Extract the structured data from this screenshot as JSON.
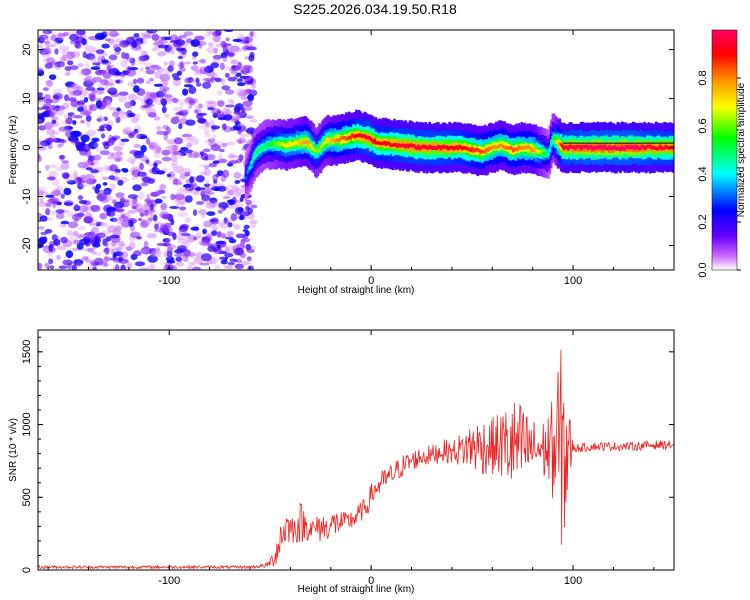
{
  "title": "S225.2026.034.19.50.R18",
  "colorbar": {
    "label": "Normalized spectral amplitude",
    "ticks": [
      "0.0",
      "0.2",
      "0.4",
      "0.6",
      "0.8"
    ],
    "tick_values": [
      0.0,
      0.2,
      0.4,
      0.6,
      0.8
    ],
    "range": [
      0,
      1
    ],
    "colormap": [
      "#ffffff",
      "#cc66ff",
      "#6600ff",
      "#0000ff",
      "#00ffff",
      "#00ff00",
      "#ffff00",
      "#ff8800",
      "#ff0000",
      "#ff0066"
    ]
  },
  "chart_data": [
    {
      "type": "heatmap",
      "xlabel": "Height of straight line (km)",
      "ylabel": "Frequency (Hz)",
      "xlim": [
        -165,
        150
      ],
      "ylim": [
        -25,
        24
      ],
      "xticks": [
        -100,
        0,
        100
      ],
      "xtick_labels": [
        "-100",
        "0",
        "100"
      ],
      "yticks": [
        -20,
        -10,
        0,
        10,
        20
      ],
      "ytick_labels": [
        "-20",
        "-10",
        "0",
        "10",
        "20"
      ],
      "noise_region_x": [
        -165,
        -58
      ],
      "ridge": {
        "x": [
          -62,
          -57,
          -52,
          -47,
          -42,
          -37,
          -32,
          -27,
          -22,
          -17,
          -12,
          -7,
          -2,
          3,
          8,
          15,
          25,
          35,
          45,
          55,
          60,
          65,
          70,
          75,
          80,
          85,
          88,
          90,
          95,
          100,
          110,
          120,
          130,
          140,
          150
        ],
        "y": [
          -6,
          -1,
          0.5,
          0.8,
          0.5,
          1,
          1.2,
          -1,
          1.5,
          1.5,
          2,
          2.5,
          2,
          1,
          0.8,
          0.5,
          0,
          0,
          0,
          -0.8,
          0,
          0.5,
          -0.5,
          0,
          -0.3,
          -1,
          -1.5,
          2,
          0,
          0,
          0,
          0,
          0,
          0,
          0
        ],
        "amp": [
          0.3,
          0.5,
          0.5,
          0.6,
          0.7,
          0.7,
          0.8,
          0.6,
          0.7,
          0.8,
          0.85,
          0.9,
          0.95,
          0.9,
          0.9,
          0.95,
          0.95,
          0.95,
          0.9,
          0.85,
          0.8,
          0.8,
          0.85,
          0.8,
          0.8,
          0.6,
          0.4,
          0.5,
          0.95,
          0.97,
          1.0,
          1.0,
          1.0,
          0.95,
          0.95
        ]
      }
    },
    {
      "type": "line",
      "xlabel": "Height of straight line (km)",
      "ylabel": "SNR (10 * v/v)",
      "xlim": [
        -165,
        150
      ],
      "ylim": [
        0,
        1650
      ],
      "xticks": [
        -100,
        0,
        100
      ],
      "xtick_labels": [
        "-100",
        "0",
        "100"
      ],
      "yticks": [
        0,
        500,
        1000,
        1500
      ],
      "ytick_labels": [
        "0",
        "500",
        "1000",
        "1500"
      ],
      "series": [
        {
          "color": "#ee2222",
          "x": [
            -165,
            -60,
            -52,
            -48,
            -45,
            -42,
            -38,
            -35,
            -32,
            -28,
            -25,
            -22,
            -18,
            -15,
            -12,
            -8,
            -5,
            -2,
            0,
            5,
            10,
            15,
            20,
            25,
            30,
            35,
            40,
            45,
            50,
            55,
            60,
            65,
            70,
            75,
            80,
            85,
            90,
            93,
            96,
            98,
            100,
            105,
            110,
            120,
            130,
            140,
            150
          ],
          "y_mean": [
            20,
            20,
            30,
            80,
            220,
            300,
            280,
            330,
            300,
            280,
            300,
            290,
            320,
            330,
            330,
            360,
            400,
            440,
            520,
            600,
            650,
            710,
            750,
            780,
            790,
            820,
            810,
            830,
            850,
            850,
            850,
            860,
            850,
            840,
            840,
            830,
            830,
            830,
            830,
            830,
            840,
            840,
            850,
            850,
            850,
            860,
            860
          ],
          "y_amp": [
            10,
            10,
            15,
            60,
            150,
            120,
            100,
            150,
            100,
            60,
            120,
            80,
            100,
            80,
            60,
            80,
            70,
            70,
            80,
            80,
            80,
            80,
            70,
            70,
            70,
            80,
            80,
            120,
            180,
            200,
            200,
            250,
            350,
            300,
            200,
            200,
            350,
            700,
            700,
            300,
            30,
            30,
            30,
            30,
            30,
            30,
            30
          ]
        }
      ]
    }
  ]
}
